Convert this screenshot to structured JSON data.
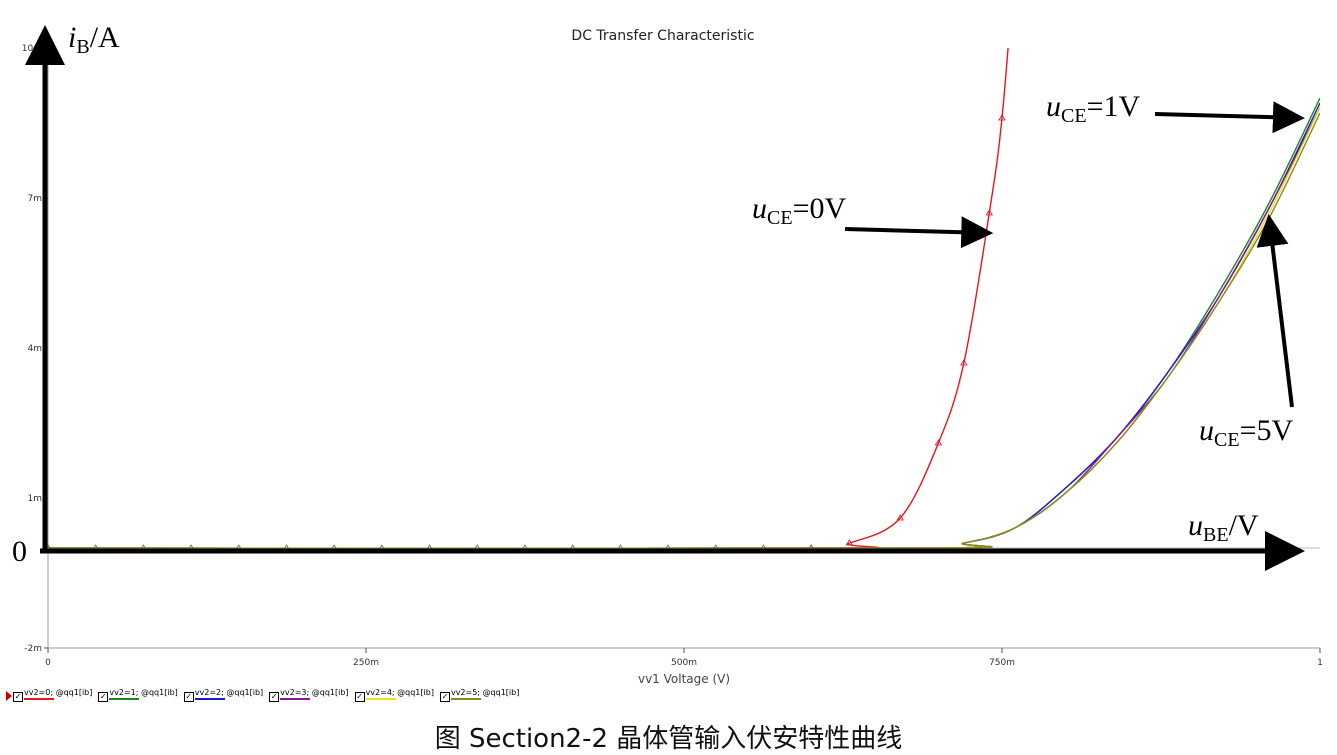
{
  "chart_data": {
    "type": "line",
    "title": "DC Transfer Characteristic",
    "xlabel": "vv1 Voltage (V)",
    "ylabel_main": "i",
    "ylabel_sub": "B",
    "ylabel_unit": "/A",
    "xlabel_overlay_main": "u",
    "xlabel_overlay_sub": "BE",
    "xlabel_overlay_unit": "/V",
    "origin_label": "0",
    "xlim": [
      0,
      1
    ],
    "ylim": [
      -0.002,
      0.01
    ],
    "x_ticks": [
      {
        "value": 0,
        "label": "0"
      },
      {
        "value": 0.25,
        "label": "250m"
      },
      {
        "value": 0.5,
        "label": "500m"
      },
      {
        "value": 0.75,
        "label": "750m"
      },
      {
        "value": 1,
        "label": "1"
      }
    ],
    "y_ticks": [
      {
        "value": -0.002,
        "label": "-2m"
      },
      {
        "value": 0.001,
        "label": "1m"
      },
      {
        "value": 0.004,
        "label": "4m"
      },
      {
        "value": 0.007,
        "label": "7m"
      },
      {
        "value": 0.01,
        "label": "10m"
      }
    ],
    "series": [
      {
        "name": "vv2=0; @qq1[ib]",
        "color": "#e8141e",
        "x": [
          0,
          0.6,
          0.63,
          0.67,
          0.7,
          0.72,
          0.74,
          0.75,
          0.76
        ],
        "y": [
          0,
          0,
          0.0001,
          0.0006,
          0.0021,
          0.0037,
          0.0067,
          0.0086,
          0.0117
        ]
      },
      {
        "name": "vv2=1; @qq1[ib]",
        "color": "#1a8a1a",
        "x": [
          0,
          0.68,
          0.72,
          0.76,
          0.8,
          0.84,
          0.88,
          0.92,
          0.96,
          1.0
        ],
        "y": [
          0,
          0,
          0.0001,
          0.0004,
          0.0012,
          0.0022,
          0.0035,
          0.0051,
          0.0069,
          0.009
        ]
      },
      {
        "name": "vv2=2; @qq1[ib]",
        "color": "#1a1acc",
        "x": [
          0,
          0.68,
          0.72,
          0.76,
          0.8,
          0.84,
          0.88,
          0.92,
          0.96,
          1.0
        ],
        "y": [
          0,
          0,
          0.0001,
          0.0004,
          0.0012,
          0.0022,
          0.0035,
          0.005,
          0.0068,
          0.0089
        ]
      },
      {
        "name": "vv2=3; @qq1[ib]",
        "color": "#8a1a9a",
        "x": [
          0,
          0.68,
          0.72,
          0.76,
          0.8,
          0.84,
          0.88,
          0.92,
          0.96,
          1.0
        ],
        "y": [
          0,
          0,
          0.0001,
          0.0004,
          0.0011,
          0.0022,
          0.0034,
          0.005,
          0.0068,
          0.0088
        ]
      },
      {
        "name": "vv2=4; @qq1[ib]",
        "color": "#e6e61a",
        "x": [
          0,
          0.68,
          0.72,
          0.76,
          0.8,
          0.84,
          0.88,
          0.92,
          0.96,
          1.0
        ],
        "y": [
          0,
          0,
          0.0001,
          0.0004,
          0.0011,
          0.0021,
          0.0034,
          0.0049,
          0.0067,
          0.0088
        ]
      },
      {
        "name": "vv2=5; @qq1[ib]",
        "color": "#8a8a1a",
        "x": [
          0,
          0.68,
          0.72,
          0.76,
          0.8,
          0.84,
          0.88,
          0.92,
          0.96,
          1.0
        ],
        "y": [
          0,
          0,
          0.0001,
          0.0004,
          0.0011,
          0.0021,
          0.0034,
          0.0049,
          0.0066,
          0.0087
        ]
      }
    ],
    "annotations": [
      {
        "main": "u",
        "sub": "CE",
        "rest": "=0V",
        "point_x": 0.74,
        "point_y": 0.0063
      },
      {
        "main": "u",
        "sub": "CE",
        "rest": "=1V",
        "point_x": 0.985,
        "point_y": 0.0086
      },
      {
        "main": "u",
        "sub": "CE",
        "rest": "=5V",
        "point_x": 0.96,
        "point_y": 0.0066
      }
    ]
  },
  "legend": [
    {
      "label": "vv2=0; @qq1[ib]",
      "color": "#e8141e"
    },
    {
      "label": "vv2=1; @qq1[ib]",
      "color": "#1a8a1a"
    },
    {
      "label": "vv2=2; @qq1[ib]",
      "color": "#1a1acc"
    },
    {
      "label": "vv2=3; @qq1[ib]",
      "color": "#8a1a9a"
    },
    {
      "label": "vv2=4; @qq1[ib]",
      "color": "#e6e61a"
    },
    {
      "label": "vv2=5; @qq1[ib]",
      "color": "#8a8a1a"
    }
  ],
  "legend_checkmark": "✓",
  "caption": "图 Section2-2  晶体管输入伏安特性曲线"
}
